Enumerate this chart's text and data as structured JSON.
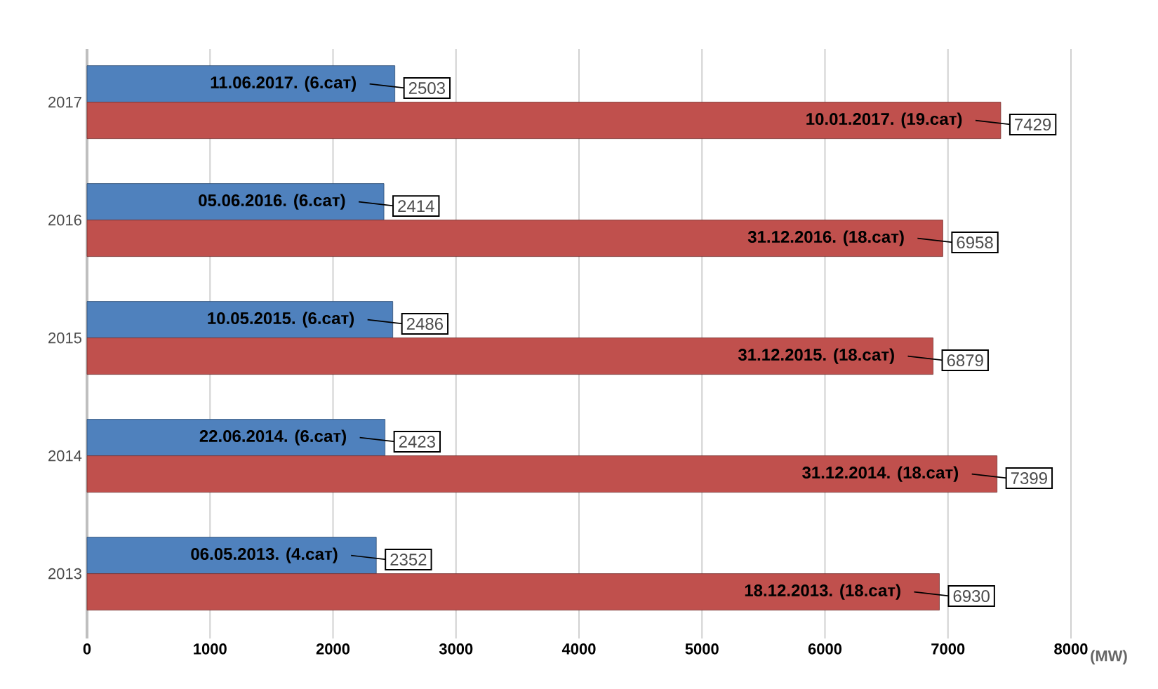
{
  "chart_data": {
    "type": "bar",
    "orientation": "horizontal",
    "categories": [
      "2017",
      "2016",
      "2015",
      "2014",
      "2013"
    ],
    "series": [
      {
        "color": "#4f81bd",
        "values": [
          2503,
          2414,
          2486,
          2423,
          2352
        ]
      },
      {
        "color": "#c0504d",
        "values": [
          7429,
          6958,
          6879,
          7399,
          6930
        ]
      }
    ],
    "data_labels": true,
    "annotations": [
      {
        "text": "11.06.2017. (6.сат)",
        "x": 2503,
        "y": "2017"
      },
      {
        "text": "10.01.2017. (19.сат)",
        "x": 7429,
        "y": "2017"
      },
      {
        "text": "05.06.2016. (6.сат)",
        "x": 2414,
        "y": "2016"
      },
      {
        "text": "31.12.2016. (18.сат)",
        "x": 6958,
        "y": "2016"
      },
      {
        "text": "10.05.2015. (6.сат)",
        "x": 2486,
        "y": "2015"
      },
      {
        "text": "31.12.2015. (18.сат)",
        "x": 6879,
        "y": "2015"
      },
      {
        "text": "22.06.2014. (6.сат)",
        "x": 2423,
        "y": "2014"
      },
      {
        "text": "31.12.2014. (18.сат)",
        "x": 7399,
        "y": "2014"
      },
      {
        "text": "06.05.2013. (4.сат)",
        "x": 2352,
        "y": "2013"
      },
      {
        "text": "18.12.2013. (18.сат)",
        "x": 6930,
        "y": "2013"
      }
    ],
    "xlabel": "(MW)",
    "xlim": [
      0,
      8000
    ],
    "xticks": [
      0,
      1000,
      2000,
      3000,
      4000,
      5000,
      6000,
      7000,
      8000
    ],
    "grid": "x"
  }
}
